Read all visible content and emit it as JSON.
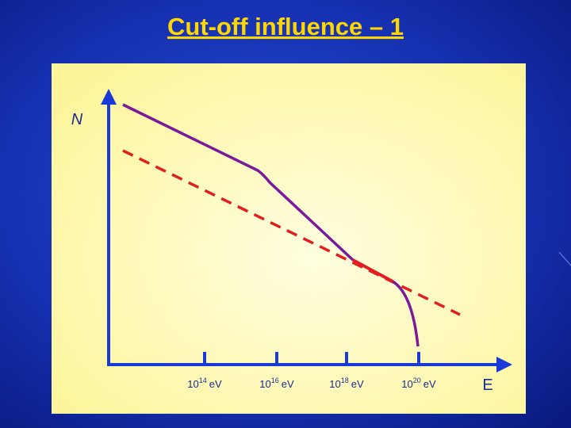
{
  "title": "Cut-off influence – 1",
  "axes": {
    "y_label": "N",
    "x_label": "E"
  },
  "x_ticks": [
    {
      "base": "10",
      "exp": "14",
      "unit": "eV"
    },
    {
      "base": "10",
      "exp": "16",
      "unit": "eV"
    },
    {
      "base": "10",
      "exp": "18",
      "unit": "eV"
    },
    {
      "base": "10",
      "exp": "20",
      "unit": "eV"
    }
  ]
}
